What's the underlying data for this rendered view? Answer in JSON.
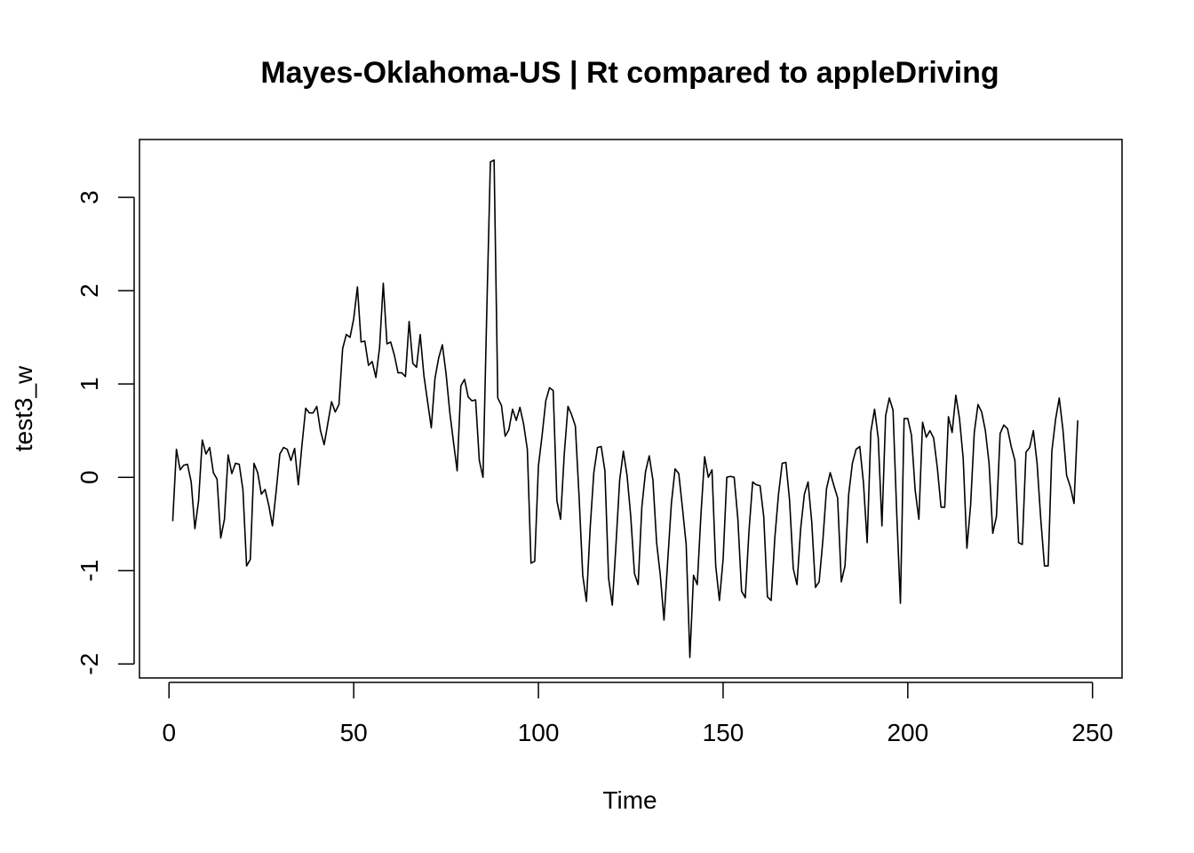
{
  "chart_data": {
    "type": "line",
    "title": "Mayes-Oklahoma-US | Rt compared to appleDriving",
    "xlabel": "Time",
    "ylabel": "test3_w",
    "xlim": [
      -8,
      258
    ],
    "ylim": [
      -2.15,
      3.62
    ],
    "x_ticks": [
      0,
      50,
      100,
      150,
      200,
      250
    ],
    "y_ticks": [
      -2,
      -1,
      0,
      1,
      2,
      3
    ],
    "grid": false,
    "legend": "none",
    "line_color": "#000000",
    "series": [
      {
        "x_start": 1,
        "values": [
          -0.47,
          0.3,
          0.08,
          0.13,
          0.14,
          -0.05,
          -0.55,
          -0.25,
          0.4,
          0.25,
          0.32,
          0.05,
          -0.02,
          -0.65,
          -0.45,
          0.24,
          0.04,
          0.15,
          0.14,
          -0.13,
          -0.95,
          -0.88,
          0.15,
          0.05,
          -0.18,
          -0.13,
          -0.3,
          -0.52,
          -0.15,
          0.25,
          0.32,
          0.3,
          0.18,
          0.31,
          -0.08,
          0.35,
          0.74,
          0.69,
          0.69,
          0.76,
          0.5,
          0.35,
          0.58,
          0.81,
          0.7,
          0.78,
          1.38,
          1.53,
          1.5,
          1.7,
          2.04,
          1.45,
          1.46,
          1.2,
          1.24,
          1.07,
          1.39,
          2.08,
          1.43,
          1.45,
          1.31,
          1.12,
          1.12,
          1.08,
          1.67,
          1.22,
          1.18,
          1.53,
          1.09,
          0.81,
          0.53,
          1.06,
          1.28,
          1.42,
          1.11,
          0.7,
          0.38,
          0.07,
          0.98,
          1.05,
          0.86,
          0.82,
          0.83,
          0.18,
          0.0,
          1.74,
          3.38,
          3.4,
          0.85,
          0.77,
          0.44,
          0.51,
          0.73,
          0.61,
          0.75,
          0.57,
          0.3,
          -0.92,
          -0.9,
          0.12,
          0.45,
          0.82,
          0.96,
          0.93,
          -0.25,
          -0.45,
          0.25,
          0.76,
          0.67,
          0.55,
          -0.2,
          -1.05,
          -1.33,
          -0.55,
          0.05,
          0.32,
          0.33,
          0.07,
          -1.08,
          -1.37,
          -0.72,
          -0.03,
          0.28,
          0.02,
          -0.42,
          -1.03,
          -1.15,
          -0.32,
          0.06,
          0.23,
          -0.03,
          -0.7,
          -1.05,
          -1.53,
          -0.9,
          -0.28,
          0.09,
          0.04,
          -0.33,
          -0.72,
          -1.93,
          -1.05,
          -1.15,
          -0.4,
          0.22,
          0.0,
          0.08,
          -0.95,
          -1.32,
          -0.88,
          -0.0,
          0.01,
          0.0,
          -0.45,
          -1.22,
          -1.29,
          -0.58,
          -0.05,
          -0.08,
          -0.09,
          -0.42,
          -1.28,
          -1.32,
          -0.65,
          -0.18,
          0.15,
          0.16,
          -0.25,
          -0.98,
          -1.15,
          -0.55,
          -0.18,
          -0.05,
          -0.48,
          -1.18,
          -1.12,
          -0.68,
          -0.12,
          0.05,
          -0.09,
          -0.22,
          -1.12,
          -0.95,
          -0.18,
          0.15,
          0.3,
          0.33,
          -0.06,
          -0.7,
          0.49,
          0.73,
          0.42,
          -0.52,
          0.66,
          0.85,
          0.72,
          -0.38,
          -1.35,
          0.63,
          0.63,
          0.45,
          -0.14,
          -0.45,
          0.59,
          0.43,
          0.5,
          0.42,
          0.1,
          -0.32,
          -0.32,
          0.65,
          0.48,
          0.88,
          0.63,
          0.2,
          -0.76,
          -0.3,
          0.48,
          0.78,
          0.7,
          0.5,
          0.15,
          -0.6,
          -0.42,
          0.47,
          0.56,
          0.52,
          0.33,
          0.18,
          -0.7,
          -0.72,
          0.27,
          0.32,
          0.5,
          0.15,
          -0.45,
          -0.95,
          -0.95,
          0.28,
          0.62,
          0.85,
          0.51,
          0.02,
          -0.1,
          -0.28,
          0.61
        ]
      }
    ]
  }
}
